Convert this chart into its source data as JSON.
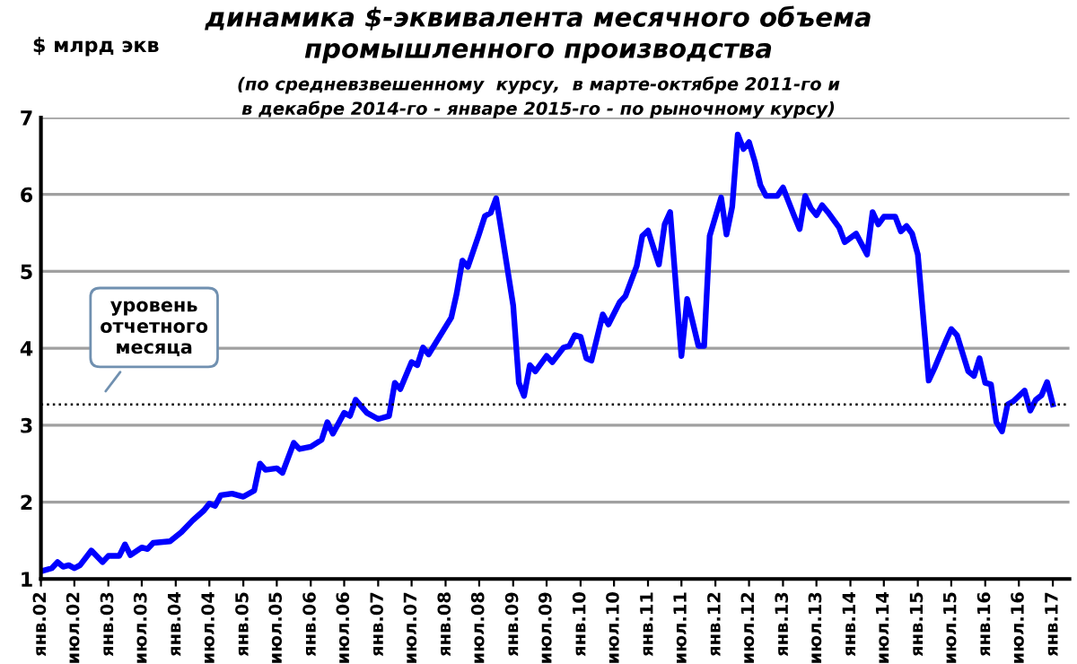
{
  "chart_data": {
    "type": "line",
    "title": "динамика $-эквивалента месячного объема\nпромышленного производства",
    "subtitle": "(по средневзвешенному  курсу,  в марте-октябре 2011-го и\nв декабре 2014-го - январе 2015-го - по рыночному курсу)",
    "ylabel": "$ млрд экв",
    "x": [
      "2002-01",
      "2002-03",
      "2002-04",
      "2002-05",
      "2002-06",
      "2002-07",
      "2002-08",
      "2002-10",
      "2002-12",
      "2003-01",
      "2003-03",
      "2003-04",
      "2003-05",
      "2003-07",
      "2003-08",
      "2003-09",
      "2003-12",
      "2004-02",
      "2004-04",
      "2004-06",
      "2004-07",
      "2004-08",
      "2004-09",
      "2004-11",
      "2005-01",
      "2005-03",
      "2005-04",
      "2005-05",
      "2005-07",
      "2005-08",
      "2005-10",
      "2005-11",
      "2006-01",
      "2006-03",
      "2006-04",
      "2006-05",
      "2006-07",
      "2006-08",
      "2006-09",
      "2006-11",
      "2007-01",
      "2007-03",
      "2007-04",
      "2007-05",
      "2007-07",
      "2007-08",
      "2007-09",
      "2007-10",
      "2008-02",
      "2008-03",
      "2008-04",
      "2008-05",
      "2008-07",
      "2008-08",
      "2008-09",
      "2008-10",
      "2008-11",
      "2009-01",
      "2009-02",
      "2009-03",
      "2009-04",
      "2009-05",
      "2009-07",
      "2009-08",
      "2009-10",
      "2009-11",
      "2009-12",
      "2010-01",
      "2010-02",
      "2010-03",
      "2010-05",
      "2010-06",
      "2010-08",
      "2010-09",
      "2010-11",
      "2010-12",
      "2011-01",
      "2011-03",
      "2011-04",
      "2011-05",
      "2011-07",
      "2011-08",
      "2011-10",
      "2011-11",
      "2011-12",
      "2012-02",
      "2012-03",
      "2012-04",
      "2012-05",
      "2012-06",
      "2012-07",
      "2012-08",
      "2012-09",
      "2012-10",
      "2012-12",
      "2013-01",
      "2013-03",
      "2013-04",
      "2013-05",
      "2013-06",
      "2013-07",
      "2013-08",
      "2013-09",
      "2013-11",
      "2013-12",
      "2014-02",
      "2014-04",
      "2014-05",
      "2014-06",
      "2014-07",
      "2014-09",
      "2014-10",
      "2014-11",
      "2014-12",
      "2015-01",
      "2015-03",
      "2015-04",
      "2015-06",
      "2015-07",
      "2015-08",
      "2015-10",
      "2015-11",
      "2015-12",
      "2016-01",
      "2016-02",
      "2016-03",
      "2016-04",
      "2016-05",
      "2016-06",
      "2016-08",
      "2016-09",
      "2016-10",
      "2016-11",
      "2016-12",
      "2017-01"
    ],
    "series": [
      {
        "color": "#0000ff",
        "values": [
          1.1,
          1.14,
          1.22,
          1.16,
          1.18,
          1.14,
          1.18,
          1.37,
          1.22,
          1.3,
          1.3,
          1.45,
          1.31,
          1.41,
          1.39,
          1.47,
          1.49,
          1.61,
          1.76,
          1.89,
          1.98,
          1.95,
          2.09,
          2.11,
          2.07,
          2.15,
          2.5,
          2.42,
          2.44,
          2.38,
          2.77,
          2.69,
          2.72,
          2.81,
          3.04,
          2.89,
          3.16,
          3.12,
          3.33,
          3.16,
          3.08,
          3.12,
          3.55,
          3.47,
          3.82,
          3.78,
          4.01,
          3.92,
          4.4,
          4.71,
          5.14,
          5.06,
          5.49,
          5.72,
          5.76,
          5.95,
          5.49,
          4.56,
          3.55,
          3.38,
          3.78,
          3.7,
          3.9,
          3.82,
          4.01,
          4.03,
          4.17,
          4.15,
          3.87,
          3.84,
          4.44,
          4.31,
          4.6,
          4.68,
          5.07,
          5.46,
          5.53,
          5.09,
          5.61,
          5.77,
          3.9,
          4.64,
          4.03,
          4.03,
          5.46,
          5.96,
          5.48,
          5.84,
          6.78,
          6.59,
          6.68,
          6.43,
          6.12,
          5.98,
          5.98,
          6.09,
          5.73,
          5.55,
          5.98,
          5.82,
          5.73,
          5.86,
          5.77,
          5.57,
          5.38,
          5.49,
          5.22,
          5.77,
          5.61,
          5.71,
          5.71,
          5.52,
          5.59,
          5.49,
          5.22,
          3.58,
          3.74,
          4.09,
          4.25,
          4.17,
          3.7,
          3.64,
          3.87,
          3.55,
          3.53,
          3.04,
          2.92,
          3.27,
          3.31,
          3.45,
          3.19,
          3.33,
          3.39,
          3.56,
          3.27
        ]
      }
    ],
    "xlim": [
      "2002-01",
      "2017-04"
    ],
    "xticks": [
      {
        "value": "2002-01",
        "label": "янв.02"
      },
      {
        "value": "2002-07",
        "label": "июл.02"
      },
      {
        "value": "2003-01",
        "label": "янв.03"
      },
      {
        "value": "2003-07",
        "label": "июл.03"
      },
      {
        "value": "2004-01",
        "label": "янв.04"
      },
      {
        "value": "2004-07",
        "label": "июл.04"
      },
      {
        "value": "2005-01",
        "label": "янв.05"
      },
      {
        "value": "2005-07",
        "label": "июл.05"
      },
      {
        "value": "2006-01",
        "label": "янв.06"
      },
      {
        "value": "2006-07",
        "label": "июл.06"
      },
      {
        "value": "2007-01",
        "label": "янв.07"
      },
      {
        "value": "2007-07",
        "label": "июл.07"
      },
      {
        "value": "2008-01",
        "label": "янв.08"
      },
      {
        "value": "2008-07",
        "label": "июл.08"
      },
      {
        "value": "2009-01",
        "label": "янв.09"
      },
      {
        "value": "2009-07",
        "label": "июл.09"
      },
      {
        "value": "2010-01",
        "label": "янв.10"
      },
      {
        "value": "2010-07",
        "label": "июл.10"
      },
      {
        "value": "2011-01",
        "label": "янв.11"
      },
      {
        "value": "2011-07",
        "label": "июл.11"
      },
      {
        "value": "2012-01",
        "label": "янв.12"
      },
      {
        "value": "2012-07",
        "label": "июл.12"
      },
      {
        "value": "2013-01",
        "label": "янв.13"
      },
      {
        "value": "2013-07",
        "label": "июл.13"
      },
      {
        "value": "2014-01",
        "label": "янв.14"
      },
      {
        "value": "2014-07",
        "label": "июл.14"
      },
      {
        "value": "2015-01",
        "label": "янв.15"
      },
      {
        "value": "2015-07",
        "label": "июл.15"
      },
      {
        "value": "2016-01",
        "label": "янв.16"
      },
      {
        "value": "2016-07",
        "label": "июл.16"
      },
      {
        "value": "2017-01",
        "label": "янв.17"
      }
    ],
    "ylim": [
      1,
      7
    ],
    "yticks": [
      1,
      2,
      3,
      4,
      5,
      6,
      7
    ],
    "grid": "y",
    "marker": "none",
    "line_style": "solid",
    "legend": false,
    "ref_lines": [
      {
        "axis": "y",
        "value": 3.27,
        "label": "уровень\nотчетного\nмесяца",
        "color": "#000000",
        "line_style": "dotted"
      }
    ]
  }
}
